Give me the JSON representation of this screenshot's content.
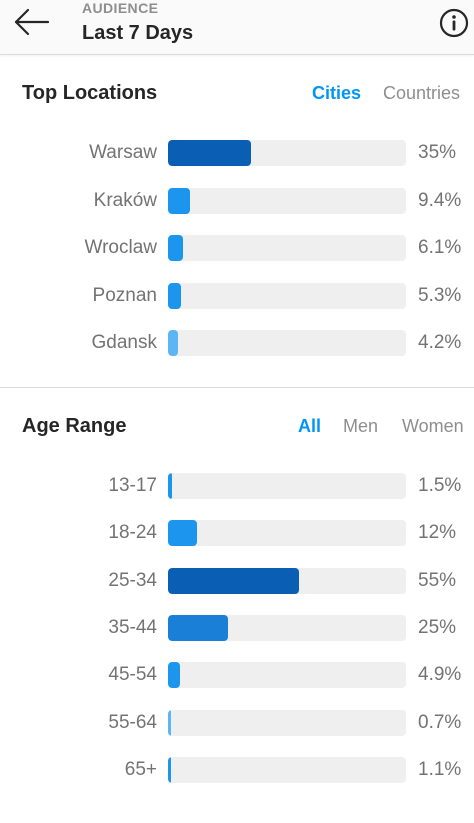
{
  "header": {
    "overline": "AUDIENCE",
    "title": "Last 7 Days",
    "back_icon": "arrow-left-icon",
    "info_icon": "info-icon"
  },
  "top_locations": {
    "title": "Top Locations",
    "tabs": [
      {
        "label": "Cities",
        "active": true
      },
      {
        "label": "Countries",
        "active": false
      }
    ],
    "rows": [
      {
        "label": "Warsaw",
        "value": "35%",
        "fraction": 0.35,
        "color": "#0a5fb4"
      },
      {
        "label": "Kraków",
        "value": "9.4%",
        "fraction": 0.094,
        "color": "#1b95ee"
      },
      {
        "label": "Wroclaw",
        "value": "6.1%",
        "fraction": 0.061,
        "color": "#1b95ee"
      },
      {
        "label": "Poznan",
        "value": "5.3%",
        "fraction": 0.053,
        "color": "#1b95ee"
      },
      {
        "label": "Gdansk",
        "value": "4.2%",
        "fraction": 0.042,
        "color": "#5cb6f5"
      }
    ]
  },
  "age_range": {
    "title": "Age Range",
    "tabs": [
      {
        "label": "All",
        "active": true
      },
      {
        "label": "Men",
        "active": false
      },
      {
        "label": "Women",
        "active": false
      }
    ],
    "rows": [
      {
        "label": "13-17",
        "value": "1.5%",
        "fraction": 0.015,
        "color": "#1b95ee"
      },
      {
        "label": "18-24",
        "value": "12%",
        "fraction": 0.12,
        "color": "#1b95ee"
      },
      {
        "label": "25-34",
        "value": "55%",
        "fraction": 0.55,
        "color": "#0a5fb4"
      },
      {
        "label": "35-44",
        "value": "25%",
        "fraction": 0.25,
        "color": "#1a7fd6"
      },
      {
        "label": "45-54",
        "value": "4.9%",
        "fraction": 0.049,
        "color": "#1b95ee"
      },
      {
        "label": "55-64",
        "value": "0.7%",
        "fraction": 0.007,
        "color": "#5cb6f5"
      },
      {
        "label": "65+",
        "value": "1.1%",
        "fraction": 0.011,
        "color": "#1b95ee"
      }
    ]
  }
}
